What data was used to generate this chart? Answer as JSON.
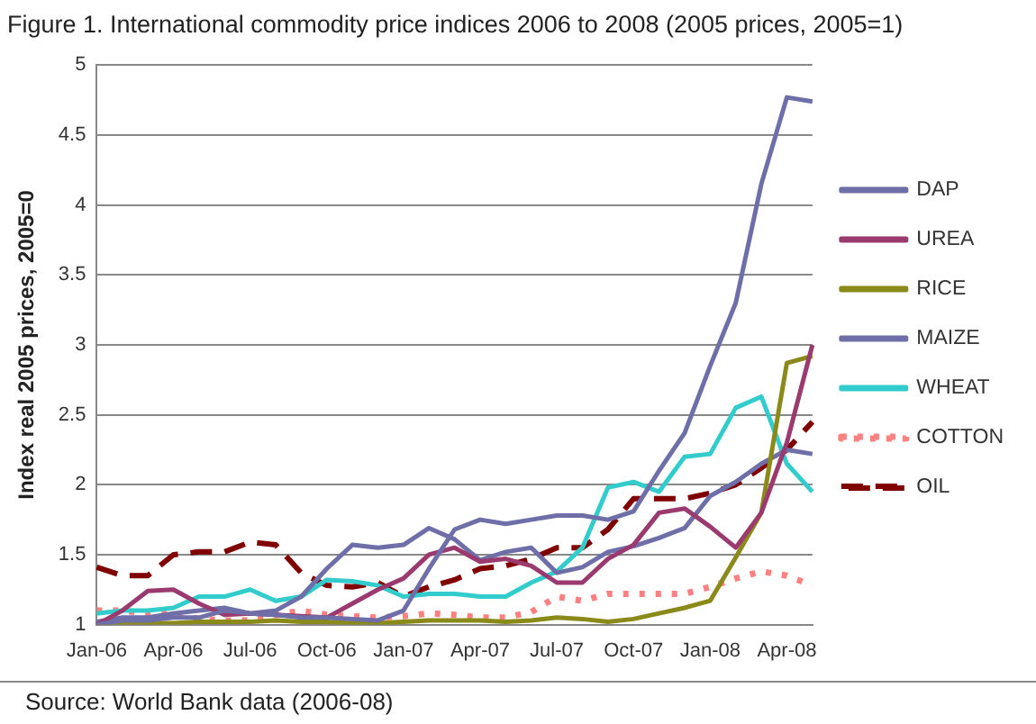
{
  "chart_data": {
    "type": "line",
    "title": "Figure 1. International commodity price indices 2006 to 2008 (2005 prices, 2005=1)",
    "ylabel": "Index real 2005 prices, 2005=0",
    "categories": [
      "Jan-06",
      null,
      null,
      "Apr-06",
      null,
      null,
      "Jul-06",
      null,
      null,
      "Oct-06",
      null,
      null,
      "Jan-07",
      null,
      null,
      "Apr-07",
      null,
      null,
      "Jul-07",
      null,
      null,
      "Oct-07",
      null,
      null,
      "Jan-08",
      null,
      null,
      "Apr-08",
      null
    ],
    "series": [
      {
        "name": "DAP",
        "color": "#6e6ea8",
        "line_style": "solid",
        "values": [
          1.0,
          1.03,
          1.03,
          1.05,
          1.05,
          1.1,
          1.08,
          1.07,
          1.05,
          1.05,
          1.04,
          1.03,
          1.1,
          1.4,
          1.68,
          1.75,
          1.72,
          1.75,
          1.78,
          1.78,
          1.75,
          1.81,
          2.1,
          2.37,
          2.85,
          3.3,
          4.15,
          4.77,
          4.74
        ]
      },
      {
        "name": "UREA",
        "color": "#9b3a6e",
        "line_style": "solid",
        "values": [
          1.0,
          1.1,
          1.24,
          1.25,
          1.15,
          1.07,
          1.08,
          1.07,
          1.06,
          1.05,
          1.15,
          1.25,
          1.33,
          1.5,
          1.55,
          1.45,
          1.47,
          1.42,
          1.3,
          1.3,
          1.47,
          1.57,
          1.8,
          1.83,
          1.7,
          1.55,
          1.8,
          2.3,
          3.0
        ]
      },
      {
        "name": "RICE",
        "color": "#8a8a1a",
        "line_style": "solid",
        "values": [
          1.0,
          1.0,
          1.01,
          1.01,
          1.02,
          1.02,
          1.02,
          1.03,
          1.02,
          1.02,
          1.01,
          1.01,
          1.02,
          1.03,
          1.03,
          1.03,
          1.02,
          1.03,
          1.05,
          1.04,
          1.02,
          1.04,
          1.08,
          1.12,
          1.17,
          1.48,
          1.8,
          2.87,
          2.92
        ]
      },
      {
        "name": "MAIZE",
        "color": "#6e6ea8",
        "line_style": "solid",
        "values": [
          1.02,
          1.05,
          1.05,
          1.08,
          1.1,
          1.12,
          1.08,
          1.1,
          1.2,
          1.4,
          1.57,
          1.55,
          1.57,
          1.69,
          1.61,
          1.46,
          1.52,
          1.55,
          1.37,
          1.41,
          1.52,
          1.56,
          1.62,
          1.69,
          1.92,
          2.02,
          2.15,
          2.25,
          2.22
        ]
      },
      {
        "name": "WHEAT",
        "color": "#33cccc",
        "line_style": "solid",
        "values": [
          1.08,
          1.1,
          1.1,
          1.12,
          1.2,
          1.2,
          1.25,
          1.17,
          1.2,
          1.32,
          1.31,
          1.28,
          1.2,
          1.22,
          1.22,
          1.2,
          1.2,
          1.3,
          1.38,
          1.55,
          1.98,
          2.02,
          1.95,
          2.2,
          2.22,
          2.55,
          2.63,
          2.15,
          1.95
        ]
      },
      {
        "name": "COTTON",
        "color": "#ff8080",
        "line_style": "dotted",
        "values": [
          1.1,
          1.1,
          1.08,
          1.08,
          1.04,
          1.03,
          1.03,
          1.07,
          1.1,
          1.07,
          1.06,
          1.05,
          1.06,
          1.08,
          1.07,
          1.05,
          1.05,
          1.09,
          1.2,
          1.17,
          1.22,
          1.22,
          1.22,
          1.22,
          1.27,
          1.33,
          1.38,
          1.35,
          1.28
        ]
      },
      {
        "name": "OIL",
        "color": "#800000",
        "line_style": "dashed",
        "values": [
          1.41,
          1.35,
          1.35,
          1.5,
          1.52,
          1.52,
          1.59,
          1.57,
          1.37,
          1.28,
          1.27,
          1.3,
          1.2,
          1.27,
          1.32,
          1.4,
          1.42,
          1.47,
          1.55,
          1.55,
          1.68,
          1.9,
          1.9,
          1.9,
          1.94,
          2.0,
          2.12,
          2.25,
          2.45
        ]
      }
    ],
    "ylim": [
      1,
      5
    ],
    "yticks": [
      1,
      1.5,
      2,
      2.5,
      3,
      3.5,
      4,
      4.5,
      5
    ],
    "grid": "y",
    "legend": "right",
    "marker": "none",
    "annotations": [
      "Source: World Bank data (2006-08)"
    ]
  }
}
